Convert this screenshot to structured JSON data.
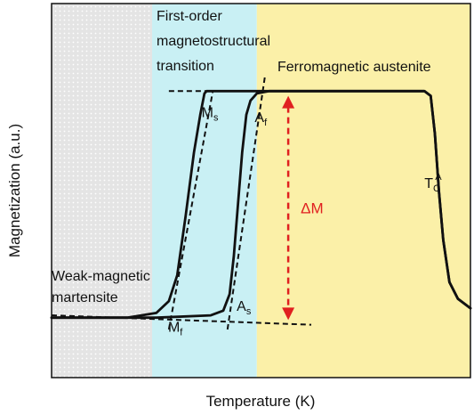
{
  "chart_data": {
    "type": "line",
    "xlabel": "Temperature (K)",
    "ylabel": "Magnetization (a.u.)",
    "xlim": [
      0,
      100
    ],
    "ylim": [
      0,
      100
    ],
    "grid": false,
    "legend": "none",
    "regions": [
      {
        "label": "Weak-magnetic martensite",
        "x_range": [
          0,
          24
        ],
        "color": "#e4e4e4",
        "pattern": "dotted"
      },
      {
        "label": "First-order magnetostructural transition",
        "x_range": [
          24,
          49
        ],
        "color": "#c9f0f4"
      },
      {
        "label": "Ferromagnetic austenite",
        "x_range": [
          49,
          100
        ],
        "color": "#fbf0a8"
      }
    ],
    "series": [
      {
        "role": "cooling",
        "x": [
          0,
          18,
          25,
          28,
          30,
          32,
          34,
          35.5,
          36.5,
          37,
          60,
          89,
          90.5,
          91.5,
          92.5,
          93.5,
          95,
          97,
          100
        ],
        "y": [
          2,
          2,
          4,
          9,
          20,
          45,
          72,
          88,
          97,
          98,
          98,
          98,
          96,
          80,
          55,
          35,
          17,
          10,
          6
        ]
      },
      {
        "role": "heating",
        "x": [
          0,
          25,
          38,
          41,
          42.5,
          43.5,
          44.5,
          45.5,
          46.5,
          47.5,
          49,
          52,
          60,
          89,
          90.5,
          91.5,
          92.5,
          93.5,
          95,
          97,
          100
        ],
        "y": [
          2,
          2,
          3,
          5,
          12,
          28,
          50,
          72,
          88,
          94,
          97,
          98,
          98,
          98,
          96,
          80,
          55,
          35,
          17,
          10,
          6
        ]
      }
    ],
    "guides": [
      {
        "x": [
          28,
          38.5
        ],
        "y": [
          -3,
          98
        ]
      },
      {
        "x": [
          42,
          51
        ],
        "y": [
          -3,
          105
        ]
      },
      {
        "x": [
          28,
          61
        ],
        "y": [
          98,
          98
        ]
      },
      {
        "x": [
          0,
          62
        ],
        "y": [
          3,
          -1
        ]
      }
    ],
    "points": [
      {
        "label": "M",
        "sub": "s",
        "x": 35.8,
        "y": 87
      },
      {
        "label": "A",
        "sub": "f",
        "x": 48.5,
        "y": 85
      },
      {
        "label": "M",
        "sub": "f",
        "x": 27.8,
        "y": -4
      },
      {
        "label": "A",
        "sub": "s",
        "x": 44.2,
        "y": 5
      },
      {
        "label": "T",
        "sub": "C",
        "sup": "A",
        "x": 89,
        "y": 57
      }
    ],
    "delta": {
      "label": "ΔM",
      "x": 56.5,
      "y_from": 1,
      "y_to": 96,
      "color": "#e02020"
    },
    "annotations": {
      "transition": [
        "First-order",
        "magnetostructural",
        "transition"
      ],
      "austenite": "Ferromagnetic austenite",
      "martensite": [
        "Weak-magnetic",
        "martensite"
      ]
    }
  }
}
